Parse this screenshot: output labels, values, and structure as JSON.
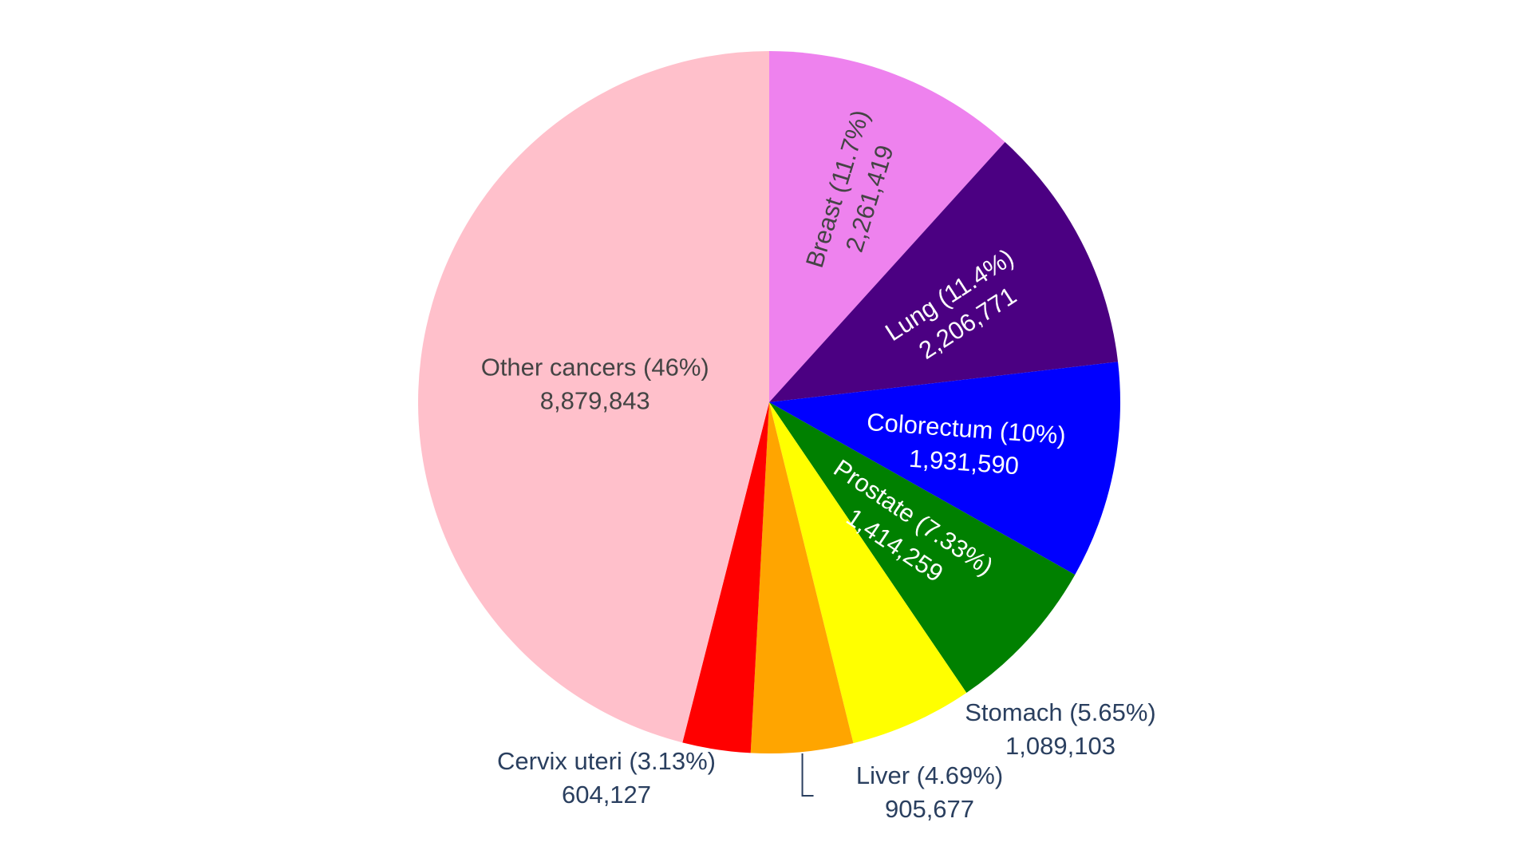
{
  "chart_data": {
    "type": "pie",
    "title": "",
    "slices": [
      {
        "label": "Breast",
        "percent_text": "11.7%",
        "value": 2261419,
        "value_text": "2,261,419",
        "color": "#ee82ee",
        "text_color": "#444444"
      },
      {
        "label": "Lung",
        "percent_text": "11.4%",
        "value": 2206771,
        "value_text": "2,206,771",
        "color": "#4b0082",
        "text_color": "#ffffff"
      },
      {
        "label": "Colorectum",
        "percent_text": "10%",
        "value": 1931590,
        "value_text": "1,931,590",
        "color": "#0000ff",
        "text_color": "#ffffff"
      },
      {
        "label": "Prostate",
        "percent_text": "7.33%",
        "value": 1414259,
        "value_text": "1,414,259",
        "color": "#008000",
        "text_color": "#ffffff"
      },
      {
        "label": "Stomach",
        "percent_text": "5.65%",
        "value": 1089103,
        "value_text": "1,089,103",
        "color": "#ffff00",
        "text_color": "#2a3f5f"
      },
      {
        "label": "Liver",
        "percent_text": "4.69%",
        "value": 905677,
        "value_text": "905,677",
        "color": "#ffa500",
        "text_color": "#2a3f5f"
      },
      {
        "label": "Cervix uteri",
        "percent_text": "3.13%",
        "value": 604127,
        "value_text": "604,127",
        "color": "#ff0000",
        "text_color": "#2a3f5f"
      },
      {
        "label": "Other cancers",
        "percent_text": "46%",
        "value": 8879843,
        "value_text": "8,879,843",
        "color": "#ffc0cb",
        "text_color": "#444444"
      }
    ],
    "direction": "clockwise",
    "start": "top",
    "legend": "none"
  }
}
